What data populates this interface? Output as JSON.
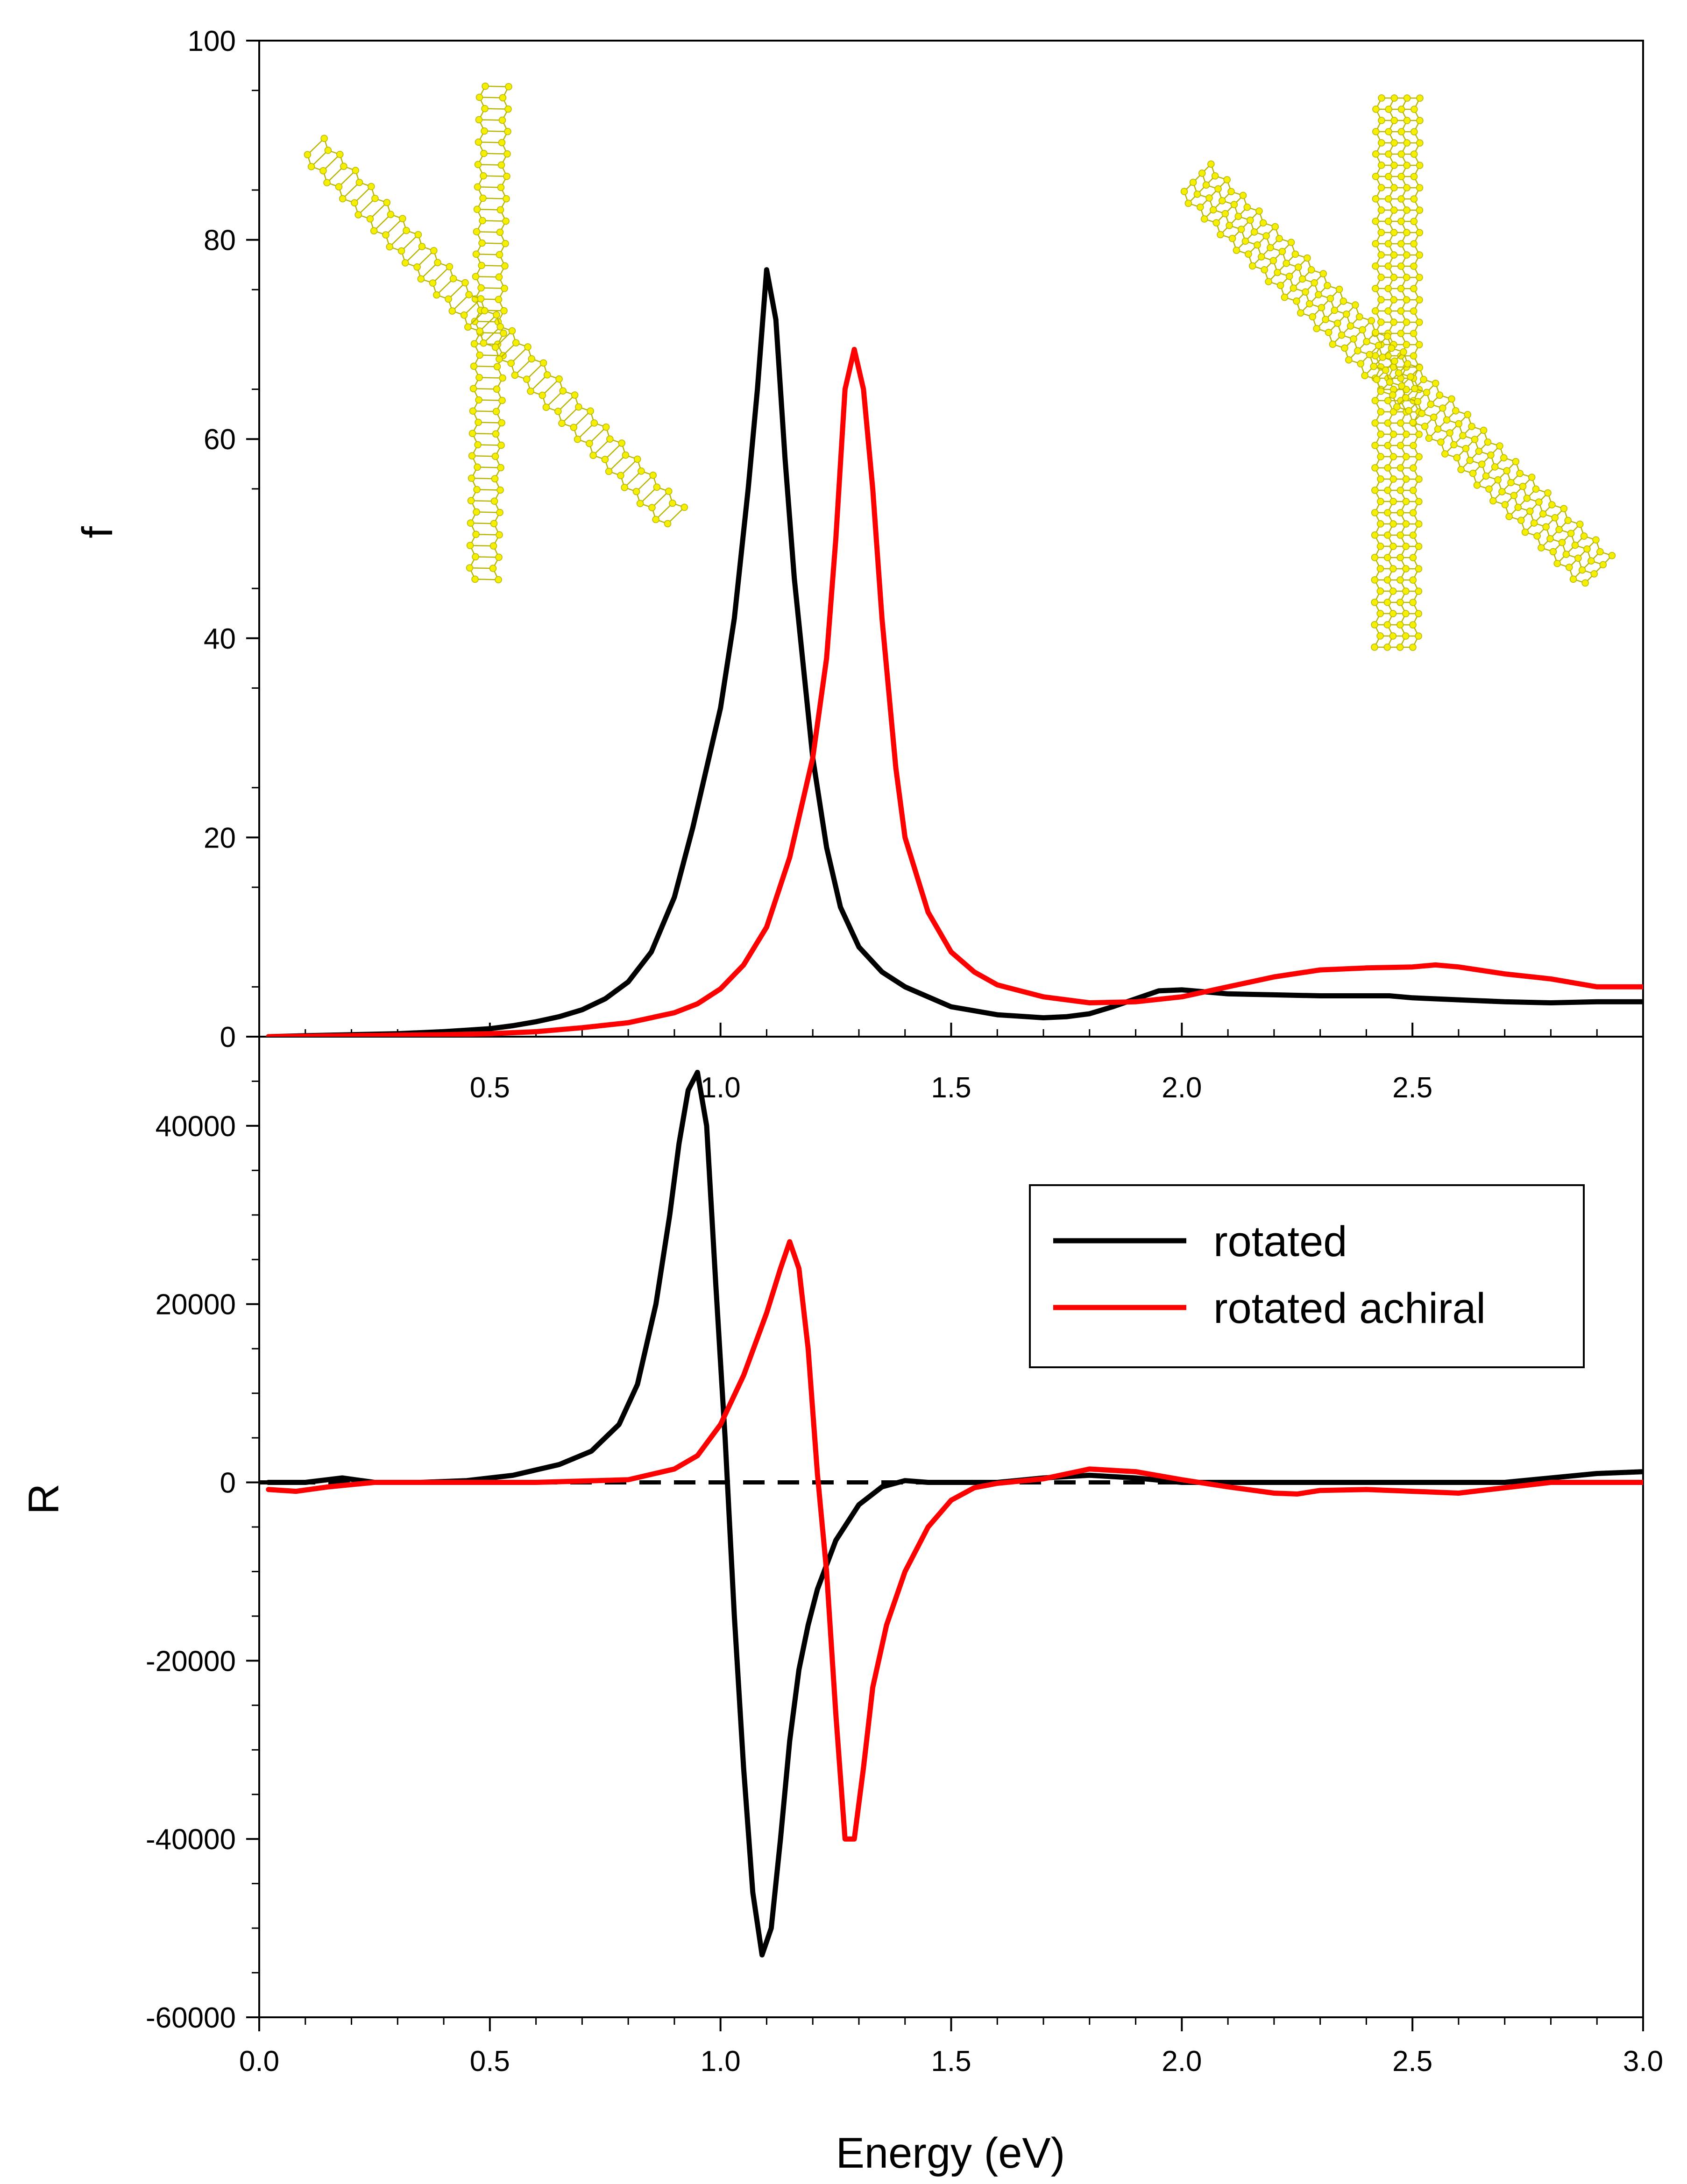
{
  "colors": {
    "rotated": "#000000",
    "rotated_achiral": "#ff0000",
    "nanorod": "#f4f000",
    "nanorod_edge": "#b8b400"
  },
  "chart_data": [
    {
      "id": "top",
      "type": "line",
      "xlabel": "",
      "ylabel": "f",
      "xlim": [
        0.0,
        3.0
      ],
      "ylim": [
        0,
        100
      ],
      "xticks": [
        "0.5",
        "1.0",
        "1.5",
        "2.0",
        "2.5"
      ],
      "xtick_values": [
        0.5,
        1.0,
        1.5,
        2.0,
        2.5
      ],
      "yticks": [
        "0",
        "20",
        "40",
        "60",
        "80",
        "100"
      ],
      "ytick_values": [
        0,
        20,
        40,
        60,
        80,
        100
      ],
      "insets": [
        "nanorod-cross-thin-icon",
        "nanorod-cross-thick-icon"
      ],
      "series": [
        {
          "name": "rotated",
          "color": "#000000",
          "x": [
            0.02,
            0.1,
            0.2,
            0.3,
            0.4,
            0.5,
            0.55,
            0.6,
            0.65,
            0.7,
            0.75,
            0.8,
            0.85,
            0.9,
            0.94,
            0.97,
            1.0,
            1.03,
            1.06,
            1.08,
            1.1,
            1.12,
            1.14,
            1.16,
            1.18,
            1.2,
            1.23,
            1.26,
            1.3,
            1.35,
            1.4,
            1.45,
            1.5,
            1.55,
            1.6,
            1.7,
            1.75,
            1.8,
            1.85,
            1.9,
            1.95,
            2.0,
            2.05,
            2.1,
            2.2,
            2.3,
            2.4,
            2.45,
            2.5,
            2.6,
            2.7,
            2.8,
            2.9,
            3.0
          ],
          "y": [
            0,
            0.1,
            0.2,
            0.3,
            0.5,
            0.8,
            1.1,
            1.5,
            2.0,
            2.7,
            3.8,
            5.5,
            8.5,
            14,
            21,
            27,
            33,
            42,
            55,
            65,
            77,
            72,
            58,
            46,
            37,
            28,
            19,
            13,
            9,
            6.5,
            5,
            4,
            3,
            2.6,
            2.2,
            1.9,
            2.0,
            2.3,
            3.0,
            3.8,
            4.6,
            4.7,
            4.5,
            4.3,
            4.2,
            4.1,
            4.1,
            4.1,
            3.9,
            3.7,
            3.5,
            3.4,
            3.5,
            3.5
          ]
        },
        {
          "name": "rotated achiral",
          "color": "#ff0000",
          "x": [
            0.02,
            0.2,
            0.4,
            0.5,
            0.6,
            0.7,
            0.8,
            0.9,
            0.95,
            1.0,
            1.05,
            1.1,
            1.15,
            1.2,
            1.23,
            1.25,
            1.27,
            1.29,
            1.31,
            1.33,
            1.35,
            1.38,
            1.4,
            1.45,
            1.5,
            1.55,
            1.6,
            1.7,
            1.8,
            1.9,
            2.0,
            2.1,
            2.2,
            2.3,
            2.4,
            2.5,
            2.55,
            2.6,
            2.7,
            2.8,
            2.9,
            3.0
          ],
          "y": [
            0,
            0.1,
            0.2,
            0.3,
            0.5,
            0.9,
            1.4,
            2.4,
            3.3,
            4.8,
            7.2,
            11,
            18,
            28,
            38,
            50,
            65,
            69,
            65,
            55,
            42,
            27,
            20,
            12.5,
            8.5,
            6.5,
            5.2,
            4.0,
            3.4,
            3.5,
            4.0,
            5.0,
            6.0,
            6.7,
            6.9,
            7.0,
            7.2,
            7.0,
            6.3,
            5.8,
            5.0,
            5.0
          ]
        }
      ]
    },
    {
      "id": "bottom",
      "type": "line",
      "xlabel": "Energy (eV)",
      "ylabel": "R",
      "xlim": [
        0.0,
        3.0
      ],
      "ylim": [
        -60000,
        50000
      ],
      "xticks": [
        "0.0",
        "0.5",
        "1.0",
        "1.5",
        "2.0",
        "2.5",
        "3.0"
      ],
      "xtick_values": [
        0.0,
        0.5,
        1.0,
        1.5,
        2.0,
        2.5,
        3.0
      ],
      "yticks": [
        "-60000",
        "-40000",
        "-20000",
        "0",
        "20000",
        "40000"
      ],
      "ytick_values": [
        -60000,
        -40000,
        -20000,
        0,
        20000,
        40000
      ],
      "legend": {
        "position": "top-right",
        "entries": [
          "rotated",
          "rotated achiral"
        ]
      },
      "reference_line": {
        "y": 0,
        "style": "dashed",
        "color": "#000000"
      },
      "series": [
        {
          "name": "rotated",
          "color": "#000000",
          "x": [
            0.02,
            0.1,
            0.18,
            0.25,
            0.35,
            0.45,
            0.55,
            0.65,
            0.72,
            0.78,
            0.82,
            0.86,
            0.89,
            0.91,
            0.93,
            0.95,
            0.97,
            0.99,
            1.01,
            1.03,
            1.05,
            1.07,
            1.09,
            1.11,
            1.13,
            1.15,
            1.17,
            1.19,
            1.21,
            1.25,
            1.3,
            1.35,
            1.4,
            1.45,
            1.5,
            1.6,
            1.7,
            1.8,
            1.9,
            2.0,
            2.1,
            2.2,
            2.3,
            2.4,
            2.5,
            2.6,
            2.7,
            2.8,
            2.9,
            3.0
          ],
          "y": [
            0,
            0,
            500,
            0,
            0,
            200,
            800,
            2000,
            3500,
            6500,
            11000,
            20000,
            30000,
            38000,
            44000,
            46000,
            40000,
            22000,
            5000,
            -15000,
            -32000,
            -46000,
            -53000,
            -50000,
            -40000,
            -29000,
            -21000,
            -16000,
            -12000,
            -6500,
            -2500,
            -500,
            200,
            0,
            0,
            0,
            500,
            800,
            500,
            0,
            0,
            0,
            0,
            0,
            0,
            0,
            0,
            500,
            1000,
            1200
          ]
        },
        {
          "name": "rotated achiral",
          "color": "#ff0000",
          "x": [
            0.02,
            0.08,
            0.15,
            0.25,
            0.4,
            0.6,
            0.8,
            0.9,
            0.95,
            1.0,
            1.05,
            1.1,
            1.13,
            1.15,
            1.17,
            1.19,
            1.21,
            1.23,
            1.25,
            1.27,
            1.29,
            1.31,
            1.33,
            1.36,
            1.4,
            1.45,
            1.5,
            1.55,
            1.6,
            1.7,
            1.8,
            1.9,
            2.0,
            2.1,
            2.2,
            2.25,
            2.3,
            2.4,
            2.5,
            2.6,
            2.7,
            2.8,
            2.9,
            3.0
          ],
          "y": [
            -800,
            -1000,
            -500,
            0,
            0,
            0,
            300,
            1500,
            3000,
            6500,
            12000,
            19000,
            24000,
            27000,
            24000,
            15000,
            1000,
            -10000,
            -26000,
            -40000,
            -40000,
            -32000,
            -23000,
            -16000,
            -10000,
            -5000,
            -2000,
            -600,
            -100,
            400,
            1500,
            1200,
            300,
            -500,
            -1200,
            -1300,
            -900,
            -800,
            -1000,
            -1200,
            -600,
            0,
            0,
            0
          ]
        }
      ]
    }
  ]
}
